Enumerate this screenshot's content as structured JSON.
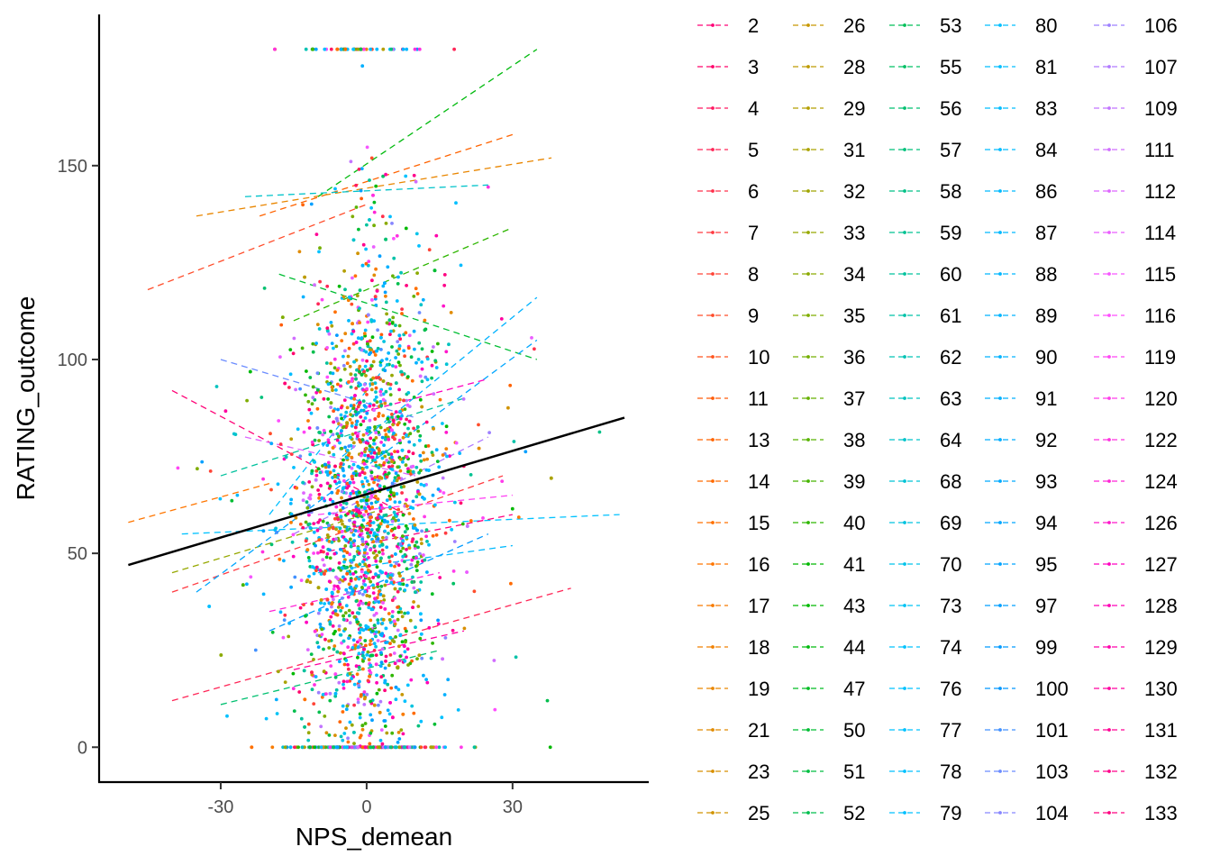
{
  "chart_data": {
    "type": "scatter",
    "xlabel": "NPS_demean",
    "ylabel": "RATING_outcome",
    "xlim": [
      -55,
      58
    ],
    "ylim": [
      -9,
      189
    ],
    "xticks": [
      -30,
      0,
      30
    ],
    "yticks": [
      0,
      50,
      100,
      150
    ],
    "grid": false,
    "legend_position": "right",
    "legend_entries": [
      "2",
      "3",
      "4",
      "5",
      "6",
      "7",
      "8",
      "9",
      "10",
      "11",
      "13",
      "14",
      "15",
      "16",
      "17",
      "18",
      "19",
      "21",
      "23",
      "25",
      "26",
      "28",
      "29",
      "31",
      "32",
      "33",
      "34",
      "35",
      "36",
      "37",
      "38",
      "39",
      "40",
      "41",
      "43",
      "44",
      "47",
      "50",
      "51",
      "52",
      "53",
      "55",
      "56",
      "57",
      "58",
      "59",
      "60",
      "61",
      "62",
      "63",
      "64",
      "68",
      "69",
      "70",
      "73",
      "74",
      "76",
      "77",
      "78",
      "79",
      "80",
      "81",
      "83",
      "84",
      "86",
      "87",
      "88",
      "89",
      "90",
      "91",
      "92",
      "93",
      "94",
      "95",
      "97",
      "99",
      "100",
      "101",
      "103",
      "104",
      "106",
      "107",
      "109",
      "111",
      "112",
      "114",
      "115",
      "116",
      "119",
      "120",
      "122",
      "124",
      "126",
      "127",
      "128",
      "129",
      "130",
      "131",
      "132",
      "133"
    ],
    "overall_fit": {
      "x": [
        -49,
        53
      ],
      "y": [
        47,
        85
      ],
      "color": "#000000"
    },
    "series_fits": [
      {
        "group": "2",
        "x": [
          -40,
          8
        ],
        "y": [
          92,
          60
        ]
      },
      {
        "group": "5",
        "x": [
          -40,
          42
        ],
        "y": [
          12,
          41
        ]
      },
      {
        "group": "7",
        "x": [
          -40,
          28
        ],
        "y": [
          40,
          70
        ]
      },
      {
        "group": "9",
        "x": [
          -45,
          0
        ],
        "y": [
          118,
          140
        ]
      },
      {
        "group": "13",
        "x": [
          -22,
          30
        ],
        "y": [
          137,
          158
        ]
      },
      {
        "group": "16",
        "x": [
          -49,
          -20
        ],
        "y": [
          58,
          68
        ]
      },
      {
        "group": "19",
        "x": [
          -35,
          38
        ],
        "y": [
          137,
          152
        ]
      },
      {
        "group": "33",
        "x": [
          -40,
          5
        ],
        "y": [
          45,
          62
        ]
      },
      {
        "group": "40",
        "x": [
          -15,
          30
        ],
        "y": [
          110,
          134
        ]
      },
      {
        "group": "44",
        "x": [
          -10,
          35
        ],
        "y": [
          142,
          180
        ]
      },
      {
        "group": "50",
        "x": [
          -18,
          35
        ],
        "y": [
          122,
          100
        ]
      },
      {
        "group": "56",
        "x": [
          -30,
          15
        ],
        "y": [
          11,
          25
        ]
      },
      {
        "group": "60",
        "x": [
          -30,
          20
        ],
        "y": [
          70,
          90
        ]
      },
      {
        "group": "64",
        "x": [
          -25,
          25
        ],
        "y": [
          142,
          145
        ]
      },
      {
        "group": "76",
        "x": [
          -38,
          52
        ],
        "y": [
          55,
          60
        ]
      },
      {
        "group": "80",
        "x": [
          -20,
          5
        ],
        "y": [
          60,
          100
        ]
      },
      {
        "group": "86",
        "x": [
          -10,
          30
        ],
        "y": [
          45,
          52
        ]
      },
      {
        "group": "90",
        "x": [
          -5,
          35
        ],
        "y": [
          75,
          116
        ]
      },
      {
        "group": "94",
        "x": [
          -35,
          35
        ],
        "y": [
          40,
          105
        ]
      },
      {
        "group": "99",
        "x": [
          -20,
          25
        ],
        "y": [
          30,
          55
        ]
      },
      {
        "group": "103",
        "x": [
          -30,
          10
        ],
        "y": [
          100,
          85
        ]
      },
      {
        "group": "107",
        "x": [
          -15,
          25
        ],
        "y": [
          55,
          80
        ]
      },
      {
        "group": "112",
        "x": [
          -25,
          10
        ],
        "y": [
          80,
          70
        ]
      },
      {
        "group": "119",
        "x": [
          -10,
          30
        ],
        "y": [
          60,
          65
        ]
      },
      {
        "group": "124",
        "x": [
          -20,
          15
        ],
        "y": [
          35,
          45
        ]
      },
      {
        "group": "127",
        "x": [
          -5,
          25
        ],
        "y": [
          85,
          95
        ]
      },
      {
        "group": "130",
        "x": [
          -15,
          20
        ],
        "y": [
          20,
          30
        ]
      },
      {
        "group": "133",
        "x": [
          -10,
          30
        ],
        "y": [
          50,
          60
        ]
      }
    ]
  }
}
